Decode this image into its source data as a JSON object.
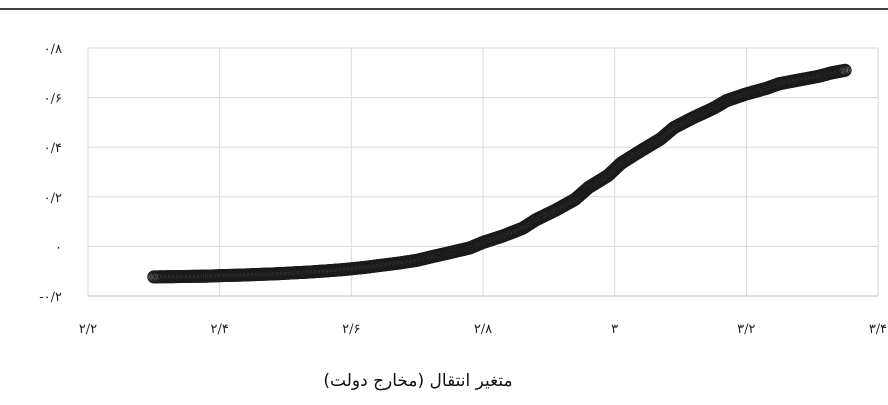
{
  "chart_data": {
    "type": "scatter",
    "title": "",
    "xlabel": "متغیر انتقال (مخارج دولت)",
    "ylabel": "",
    "xlim": [
      2.2,
      3.4
    ],
    "ylim": [
      -0.2,
      0.8
    ],
    "x_ticks": [
      2.2,
      2.4,
      2.6,
      2.8,
      3.0,
      3.2,
      3.4
    ],
    "x_tick_labels": [
      "۲/۲",
      "۲/۴",
      "۲/۶",
      "۲/۸",
      "۳",
      "۳/۲",
      "۳/۴"
    ],
    "y_ticks": [
      -0.2,
      0,
      0.2,
      0.4,
      0.6,
      0.8
    ],
    "y_tick_labels": [
      "-۰/۲",
      "۰",
      "۰/۲",
      "۰/۴",
      "۰/۶",
      "۰/۸"
    ],
    "grid": true,
    "legend": "none",
    "series": [
      {
        "marker": "open-circle",
        "line": true,
        "color": "#5b9bd5",
        "points": [
          [
            2.3,
            -0.123
          ],
          [
            2.33,
            -0.122
          ],
          [
            2.35,
            -0.121
          ],
          [
            2.38,
            -0.12
          ],
          [
            2.4,
            -0.118
          ],
          [
            2.43,
            -0.116
          ],
          [
            2.46,
            -0.113
          ],
          [
            2.49,
            -0.11
          ],
          [
            2.51,
            -0.107
          ],
          [
            2.54,
            -0.103
          ],
          [
            2.56,
            -0.099
          ],
          [
            2.59,
            -0.093
          ],
          [
            2.62,
            -0.085
          ],
          [
            2.64,
            -0.078
          ],
          [
            2.67,
            -0.068
          ],
          [
            2.7,
            -0.056
          ],
          [
            2.72,
            -0.043
          ],
          [
            2.75,
            -0.025
          ],
          [
            2.78,
            -0.006
          ],
          [
            2.8,
            0.016
          ],
          [
            2.83,
            0.042
          ],
          [
            2.86,
            0.073
          ],
          [
            2.88,
            0.107
          ],
          [
            2.91,
            0.146
          ],
          [
            2.94,
            0.19
          ],
          [
            2.96,
            0.237
          ],
          [
            2.99,
            0.286
          ],
          [
            3.01,
            0.336
          ],
          [
            3.04,
            0.386
          ],
          [
            3.07,
            0.434
          ],
          [
            3.09,
            0.479
          ],
          [
            3.12,
            0.52
          ],
          [
            3.15,
            0.557
          ],
          [
            3.17,
            0.588
          ],
          [
            3.2,
            0.615
          ],
          [
            3.23,
            0.637
          ],
          [
            3.25,
            0.656
          ],
          [
            3.28,
            0.671
          ],
          [
            3.31,
            0.686
          ],
          [
            3.33,
            0.7
          ],
          [
            3.35,
            0.71
          ]
        ]
      }
    ]
  }
}
